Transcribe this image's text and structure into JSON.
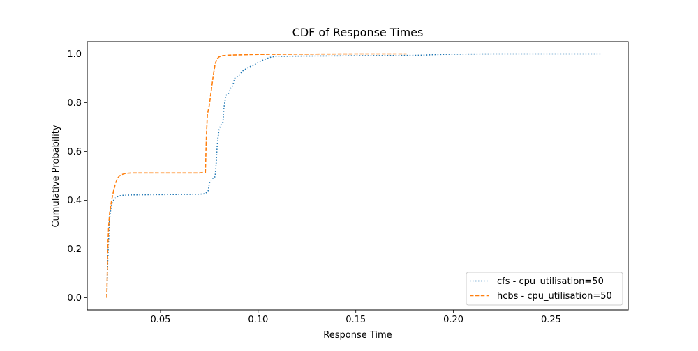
{
  "chart_data": {
    "type": "line",
    "title": "CDF of Response Times",
    "xlabel": "Response Time",
    "ylabel": "Cumulative Probability",
    "xlim": [
      0.0125,
      0.2895
    ],
    "ylim": [
      -0.05,
      1.05
    ],
    "xticks": [
      0.05,
      0.1,
      0.15,
      0.2,
      0.25
    ],
    "xtick_labels": [
      "0.05",
      "0.10",
      "0.15",
      "0.20",
      "0.25"
    ],
    "yticks": [
      0.0,
      0.2,
      0.4,
      0.6,
      0.8,
      1.0
    ],
    "ytick_labels": [
      "0.0",
      "0.2",
      "0.4",
      "0.6",
      "0.8",
      "1.0"
    ],
    "grid": false,
    "legend_position": "lower-right",
    "series": [
      {
        "name": "cfs - cpu_utilisation=50",
        "color": "#1f77b4",
        "linestyle": "dotted",
        "x": [
          0.0225,
          0.023,
          0.0235,
          0.024,
          0.0245,
          0.025,
          0.026,
          0.027,
          0.028,
          0.03,
          0.035,
          0.045,
          0.06,
          0.07,
          0.073,
          0.0745,
          0.075,
          0.0765,
          0.0775,
          0.078,
          0.0785,
          0.079,
          0.0795,
          0.08,
          0.081,
          0.082,
          0.0825,
          0.0835,
          0.085,
          0.086,
          0.087,
          0.088,
          0.09,
          0.092,
          0.095,
          0.098,
          0.101,
          0.104,
          0.107,
          0.11,
          0.12,
          0.14,
          0.16,
          0.18,
          0.185,
          0.19,
          0.2,
          0.22,
          0.25,
          0.276
        ],
        "y": [
          0.0,
          0.15,
          0.25,
          0.33,
          0.36,
          0.38,
          0.4,
          0.41,
          0.415,
          0.42,
          0.422,
          0.423,
          0.424,
          0.425,
          0.427,
          0.44,
          0.47,
          0.49,
          0.49,
          0.5,
          0.55,
          0.62,
          0.66,
          0.69,
          0.71,
          0.72,
          0.78,
          0.83,
          0.84,
          0.86,
          0.87,
          0.9,
          0.91,
          0.93,
          0.945,
          0.955,
          0.97,
          0.98,
          0.988,
          0.99,
          0.991,
          0.992,
          0.993,
          0.994,
          0.995,
          0.997,
          0.999,
          1.0,
          1.0,
          1.0
        ]
      },
      {
        "name": "hcbs - cpu_utilisation=50",
        "color": "#ff7f0e",
        "linestyle": "dashed",
        "x": [
          0.0225,
          0.023,
          0.0235,
          0.024,
          0.025,
          0.026,
          0.027,
          0.028,
          0.029,
          0.03,
          0.032,
          0.035,
          0.04,
          0.05,
          0.06,
          0.07,
          0.073,
          0.0735,
          0.074,
          0.075,
          0.076,
          0.077,
          0.078,
          0.079,
          0.08,
          0.082,
          0.085,
          0.09,
          0.1,
          0.12,
          0.15,
          0.176
        ],
        "y": [
          0.0,
          0.2,
          0.3,
          0.35,
          0.4,
          0.44,
          0.47,
          0.49,
          0.5,
          0.505,
          0.51,
          0.512,
          0.512,
          0.512,
          0.512,
          0.512,
          0.515,
          0.66,
          0.75,
          0.79,
          0.85,
          0.91,
          0.96,
          0.98,
          0.988,
          0.993,
          0.995,
          0.996,
          0.998,
          0.999,
          1.0,
          1.0
        ]
      }
    ]
  }
}
